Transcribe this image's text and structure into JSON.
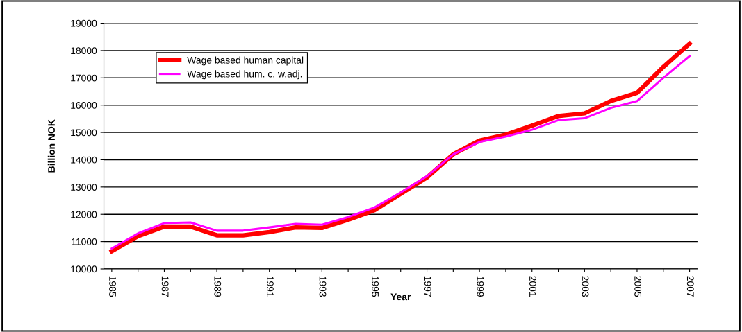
{
  "chart_data": {
    "type": "line",
    "xlabel": "Year",
    "ylabel": "Billion NOK",
    "categories": [
      "1985",
      null,
      "1987",
      null,
      "1989",
      null,
      "1991",
      null,
      "1993",
      null,
      "1995",
      null,
      "1997",
      null,
      "1999",
      null,
      "2001",
      null,
      "2003",
      null,
      "2005",
      null,
      "2007"
    ],
    "series": [
      {
        "name": "Wage based human capital",
        "color": "#ff0000",
        "values": [
          10650,
          11200,
          11550,
          11550,
          11230,
          11230,
          11350,
          11520,
          11500,
          11800,
          12150,
          12750,
          13350,
          14200,
          14700,
          14920,
          15250,
          15600,
          15700,
          16150,
          16450,
          17400,
          18250
        ]
      },
      {
        "name": "Wage based hum. c. w.adj.",
        "color": "#ff00ff",
        "values": [
          10750,
          11300,
          11680,
          11700,
          11400,
          11400,
          11520,
          11650,
          11620,
          11900,
          12250,
          12800,
          13400,
          14200,
          14650,
          14850,
          15100,
          15450,
          15520,
          15900,
          16150,
          17000,
          17800
        ]
      }
    ],
    "ylim": [
      10000,
      19000
    ],
    "yticks": [
      10000,
      11000,
      12000,
      13000,
      14000,
      15000,
      16000,
      17000,
      18000,
      19000
    ],
    "grid": "y",
    "legend": "top left",
    "marker": "none",
    "line_style": "solid"
  }
}
